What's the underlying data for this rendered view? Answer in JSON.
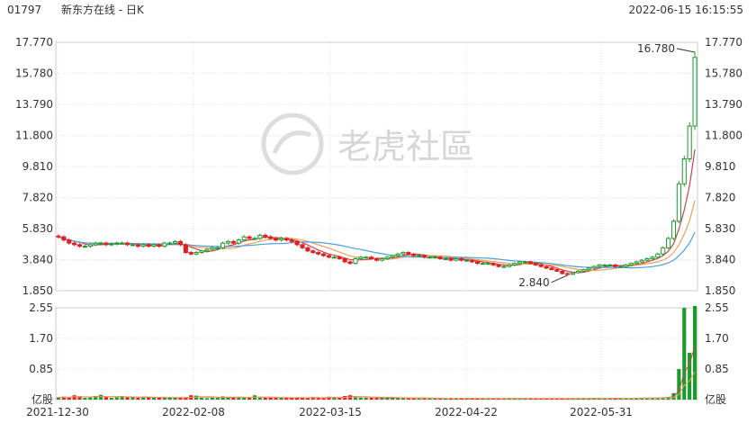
{
  "header": {
    "code": "01797",
    "name": "新东方在线 - 日K",
    "timestamp": "2022-06-15 16:15:55"
  },
  "watermark": "老虎社區",
  "colors": {
    "up": "#1a9a2a",
    "down": "#e02020",
    "ma5": "#d04050",
    "ma10": "#f0a050",
    "ma20": "#4a9ee0",
    "grid": "#dddddd"
  },
  "chart_data": {
    "type": "candlestick",
    "price_axis": {
      "min": 1.85,
      "max": 17.77,
      "ticks": [
        "17.770",
        "15.780",
        "13.790",
        "11.800",
        "9.810",
        "7.820",
        "5.830",
        "3.840",
        "1.850"
      ]
    },
    "volume_axis": {
      "max": 2.55,
      "ticks": [
        "2.55",
        "1.70",
        "0.85",
        "亿股"
      ]
    },
    "date_labels": [
      "2021-12-30",
      "2022-02-08",
      "2022-03-15",
      "2022-04-22",
      "2022-05-31"
    ],
    "annotations": {
      "high": "16.780",
      "low": "2.840"
    },
    "closes": [
      5.3,
      5.1,
      4.9,
      4.8,
      4.7,
      4.7,
      4.8,
      4.9,
      4.9,
      4.8,
      4.85,
      4.9,
      4.9,
      4.8,
      4.8,
      4.7,
      4.8,
      4.7,
      4.8,
      4.7,
      4.9,
      4.9,
      5.0,
      4.8,
      4.3,
      4.2,
      4.3,
      4.4,
      4.5,
      4.6,
      4.6,
      4.9,
      5.0,
      4.9,
      5.1,
      5.3,
      5.2,
      5.2,
      5.4,
      5.3,
      5.2,
      5.1,
      5.2,
      5.1,
      5.0,
      4.8,
      4.6,
      4.4,
      4.3,
      4.2,
      4.1,
      4.0,
      4.0,
      3.9,
      3.7,
      3.6,
      3.9,
      4.0,
      4.0,
      3.9,
      3.8,
      3.9,
      4.0,
      4.1,
      4.2,
      4.3,
      4.2,
      4.1,
      4.1,
      4.0,
      4.0,
      4.0,
      3.9,
      3.9,
      3.8,
      3.9,
      3.8,
      3.8,
      3.7,
      3.6,
      3.6,
      3.6,
      3.5,
      3.4,
      3.4,
      3.5,
      3.6,
      3.7,
      3.7,
      3.6,
      3.5,
      3.4,
      3.3,
      3.2,
      3.1,
      2.95,
      2.9,
      3.0,
      3.1,
      3.2,
      3.3,
      3.4,
      3.5,
      3.5,
      3.5,
      3.4,
      3.4,
      3.5,
      3.6,
      3.7,
      3.8,
      3.9,
      4.0,
      4.2,
      4.6,
      5.2,
      6.3,
      8.7,
      10.3,
      12.4,
      16.8
    ],
    "volumes": [
      0.06,
      0.08,
      0.05,
      0.12,
      0.09,
      0.05,
      0.06,
      0.1,
      0.13,
      0.07,
      0.05,
      0.06,
      0.1,
      0.06,
      0.08,
      0.05,
      0.06,
      0.07,
      0.05,
      0.06,
      0.05,
      0.05,
      0.06,
      0.05,
      0.05,
      0.12,
      0.11,
      0.05,
      0.04,
      0.06,
      0.05,
      0.09,
      0.05,
      0.06,
      0.07,
      0.05,
      0.05,
      0.12,
      0.05,
      0.06,
      0.05,
      0.05,
      0.04,
      0.05,
      0.05,
      0.06,
      0.05,
      0.04,
      0.07,
      0.05,
      0.05,
      0.08,
      0.06,
      0.05,
      0.1,
      0.12,
      0.07,
      0.05,
      0.05,
      0.05,
      0.04,
      0.06,
      0.05,
      0.05,
      0.04,
      0.05,
      0.04,
      0.04,
      0.04,
      0.04,
      0.03,
      0.04,
      0.03,
      0.03,
      0.04,
      0.04,
      0.04,
      0.03,
      0.03,
      0.03,
      0.03,
      0.03,
      0.03,
      0.03,
      0.03,
      0.04,
      0.03,
      0.03,
      0.04,
      0.03,
      0.03,
      0.03,
      0.03,
      0.03,
      0.03,
      0.03,
      0.02,
      0.03,
      0.04,
      0.03,
      0.03,
      0.04,
      0.03,
      0.04,
      0.04,
      0.04,
      0.03,
      0.05,
      0.03,
      0.04,
      0.05,
      0.04,
      0.05,
      0.05,
      0.06,
      0.07,
      0.18,
      0.85,
      2.55,
      1.3,
      2.6
    ]
  }
}
